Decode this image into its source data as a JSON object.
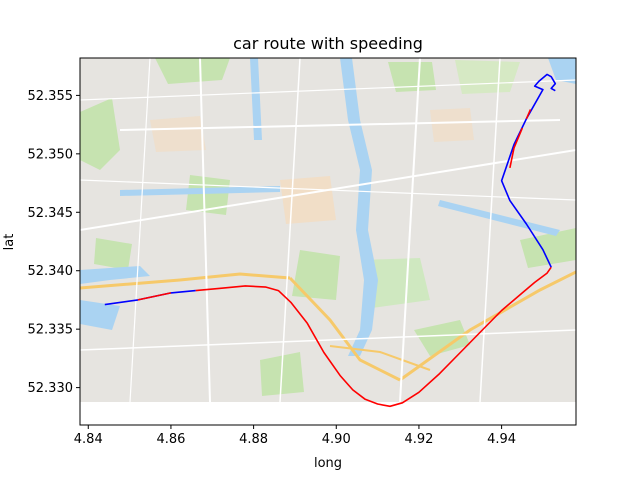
{
  "chart_data": {
    "type": "line",
    "title": "car route with speeding",
    "xlabel": "long",
    "ylabel": "lat",
    "xlim": [
      4.838,
      4.958
    ],
    "ylim": [
      52.3268,
      52.3582
    ],
    "xticks": [
      4.84,
      4.86,
      4.88,
      4.9,
      4.92,
      4.94
    ],
    "xtick_labels": [
      "4.84",
      "4.86",
      "4.88",
      "4.90",
      "4.92",
      "4.94"
    ],
    "yticks": [
      52.33,
      52.335,
      52.34,
      52.345,
      52.35,
      52.355
    ],
    "ytick_labels": [
      "52.330",
      "52.335",
      "52.340",
      "52.345",
      "52.350",
      "52.355"
    ],
    "grid": false,
    "background": "street map of Amsterdam south",
    "colors": {
      "normal": "#0000ff",
      "speeding": "#ff0000"
    },
    "series": [
      {
        "color": "#0000ff",
        "points": [
          [
            4.844,
            52.3371
          ],
          [
            4.852,
            52.3375
          ],
          [
            4.86,
            52.3381
          ],
          [
            4.866,
            52.3383
          ]
        ]
      },
      {
        "color": "#ff0000",
        "points": [
          [
            4.852,
            52.3375
          ],
          [
            4.856,
            52.3378
          ],
          [
            4.86,
            52.3381
          ]
        ]
      },
      {
        "color": "#ff0000",
        "points": [
          [
            4.866,
            52.3383
          ],
          [
            4.872,
            52.3385
          ],
          [
            4.878,
            52.3387
          ],
          [
            4.883,
            52.3386
          ],
          [
            4.886,
            52.3383
          ],
          [
            4.889,
            52.3373
          ],
          [
            4.893,
            52.3355
          ],
          [
            4.897,
            52.333
          ],
          [
            4.901,
            52.331
          ],
          [
            4.904,
            52.3298
          ],
          [
            4.907,
            52.329
          ],
          [
            4.91,
            52.3286
          ],
          [
            4.913,
            52.3284
          ],
          [
            4.916,
            52.3287
          ],
          [
            4.92,
            52.3296
          ],
          [
            4.925,
            52.3312
          ],
          [
            4.93,
            52.333
          ],
          [
            4.935,
            52.3348
          ],
          [
            4.94,
            52.3366
          ],
          [
            4.945,
            52.3381
          ],
          [
            4.948,
            52.339
          ],
          [
            4.951,
            52.3398
          ],
          [
            4.952,
            52.3403
          ]
        ]
      },
      {
        "color": "#0000ff",
        "points": [
          [
            4.952,
            52.3403
          ],
          [
            4.95,
            52.3418
          ],
          [
            4.946,
            52.344
          ],
          [
            4.942,
            52.346
          ],
          [
            4.94,
            52.3477
          ],
          [
            4.943,
            52.3508
          ],
          [
            4.946,
            52.353
          ],
          [
            4.95,
            52.3555
          ],
          [
            4.948,
            52.3558
          ],
          [
            4.949,
            52.3562
          ],
          [
            4.951,
            52.3568
          ],
          [
            4.952,
            52.3566
          ],
          [
            4.953,
            52.356
          ],
          [
            4.952,
            52.3556
          ],
          [
            4.953,
            52.3554
          ]
        ]
      },
      {
        "color": "#ff0000",
        "points": [
          [
            4.942,
            52.3488
          ],
          [
            4.943,
            52.3505
          ],
          [
            4.945,
            52.3522
          ]
        ]
      },
      {
        "color": "#ff0000",
        "points": [
          [
            4.946,
            52.353
          ],
          [
            4.947,
            52.3538
          ]
        ]
      }
    ]
  }
}
